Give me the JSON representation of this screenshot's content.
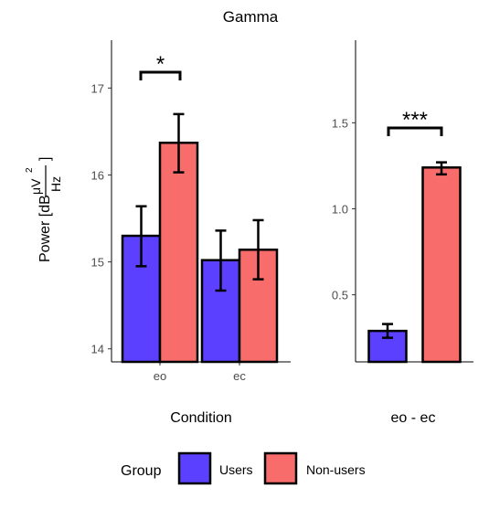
{
  "title": "Gamma",
  "colors": {
    "users": "#5c40ff",
    "nonusers": "#f86c6c",
    "outline": "#000000",
    "tick_text": "#4d4d4d"
  },
  "ylabel": {
    "prefix": "Power [dB",
    "numerator": "μV",
    "superscript": "2",
    "denominator": "Hz",
    "suffix": "]"
  },
  "legend": {
    "title": "Group",
    "items": [
      {
        "label": "Users",
        "color": "#5c40ff"
      },
      {
        "label": "Non-users",
        "color": "#f86c6c"
      }
    ]
  },
  "chart_data": [
    {
      "type": "bar",
      "xlabel": "Condition",
      "categories": [
        "eo",
        "ec"
      ],
      "ylim": [
        13.85,
        17.55
      ],
      "yticks": [
        14,
        15,
        16,
        17
      ],
      "yticklabels": [
        "14",
        "15",
        "16",
        "17"
      ],
      "series": [
        {
          "name": "Users",
          "values": [
            15.3,
            15.02
          ],
          "error_low": [
            14.95,
            14.67
          ],
          "error_high": [
            15.64,
            15.36
          ]
        },
        {
          "name": "Non-users",
          "values": [
            16.37,
            15.14
          ],
          "error_low": [
            16.03,
            14.8
          ],
          "error_high": [
            16.7,
            15.48
          ]
        }
      ],
      "annotations": [
        {
          "text": "*",
          "category": "eo"
        }
      ]
    },
    {
      "type": "bar",
      "xlabel": "eo - ec",
      "categories": [
        "Users",
        "Non-users"
      ],
      "ylim": [
        0.11,
        1.98
      ],
      "yticks": [
        0.5,
        1.0,
        1.5
      ],
      "yticklabels": [
        "0.5",
        "1.0",
        "1.5"
      ],
      "values": [
        0.29,
        1.24
      ],
      "error_low": [
        0.25,
        1.2
      ],
      "error_high": [
        0.33,
        1.27
      ],
      "annotations": [
        {
          "text": "***"
        }
      ]
    }
  ]
}
